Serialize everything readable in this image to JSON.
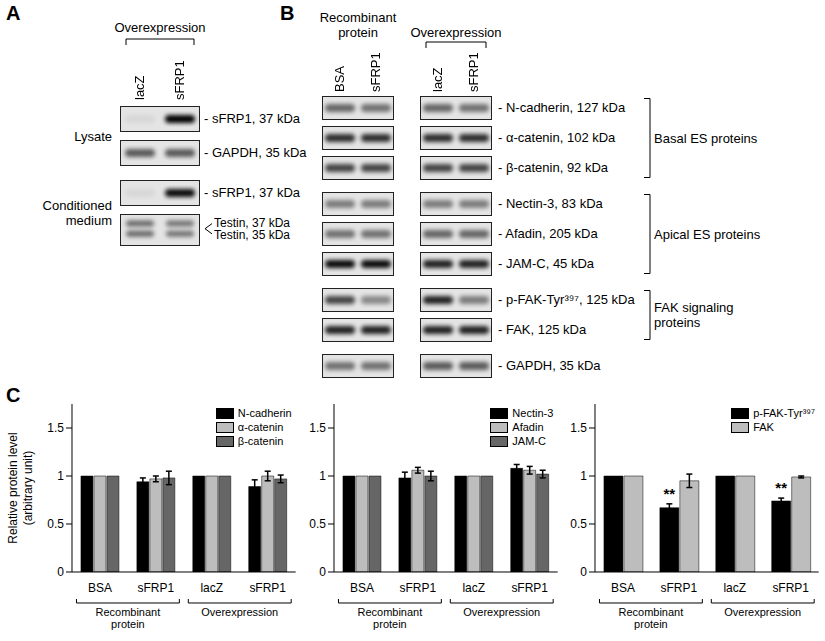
{
  "panel_a": {
    "label": "A",
    "header": "Overexpression",
    "lanes": [
      "lacZ",
      "sFRP1"
    ],
    "sections": [
      {
        "label": "Lysate",
        "rows": [
          {
            "labels": [
              "- sFRP1, 37 kDa"
            ]
          },
          {
            "labels": [
              "- GAPDH, 35 kDa"
            ]
          }
        ]
      },
      {
        "label": "Conditioned medium",
        "rows": [
          {
            "labels": [
              "- sFRP1, 37 kDa"
            ]
          },
          {
            "labels": [
              "Testin, 37 kDa",
              "Testin, 35 kDa"
            ]
          }
        ]
      }
    ]
  },
  "panel_b": {
    "label": "B",
    "lane_groups": [
      {
        "label": "Recombinant protein",
        "lanes": [
          "BSA",
          "sFRP1"
        ]
      },
      {
        "label": "Overexpression",
        "lanes": [
          "lacZ",
          "sFRP1"
        ]
      }
    ],
    "rows": [
      {
        "label": "- N-cadherin, 127 kDa",
        "group": "Basal ES proteins"
      },
      {
        "label": "- α-catenin, 102 kDa",
        "group": "Basal ES proteins"
      },
      {
        "label": "- β-catenin, 92 kDa",
        "group": "Basal ES proteins"
      },
      {
        "label": "- Nectin-3, 83 kDa",
        "group": "Apical ES proteins"
      },
      {
        "label": "- Afadin, 205 kDa",
        "group": "Apical ES proteins"
      },
      {
        "label": "- JAM-C, 45 kDa",
        "group": "Apical ES proteins"
      },
      {
        "label": "- p-FAK-Tyr³⁹⁷, 125 kDa",
        "group": "FAK signaling proteins"
      },
      {
        "label": "- FAK, 125 kDa",
        "group": "FAK signaling proteins"
      },
      {
        "label": "- GAPDH, 35 kDa"
      }
    ]
  },
  "panel_c": {
    "label": "C",
    "y_label": "Relative protein level (arbitrary unit)"
  },
  "chart_data": [
    {
      "type": "bar",
      "categories": [
        "BSA",
        "sFRP1",
        "lacZ",
        "sFRP1"
      ],
      "group_labels": [
        "Recombinant protein",
        "Recombinant protein",
        "Overexpression",
        "Overexpression"
      ],
      "ylim": [
        0,
        1.75
      ],
      "yticks": [
        0,
        0.5,
        1,
        1.5
      ],
      "legend": "upper right",
      "series": [
        {
          "name": "N-cadherin",
          "color": "#000000",
          "values": [
            1,
            0.94,
            1,
            0.89
          ],
          "errors": [
            0,
            0.04,
            0,
            0.07
          ]
        },
        {
          "name": "α-catenin",
          "color": "#bdbdbd",
          "values": [
            1,
            0.97,
            1,
            1.0
          ],
          "errors": [
            0,
            0.03,
            0,
            0.05
          ]
        },
        {
          "name": "β-catenin",
          "color": "#666666",
          "values": [
            1,
            0.98,
            1,
            0.97
          ],
          "errors": [
            0,
            0.07,
            0,
            0.04
          ]
        }
      ]
    },
    {
      "type": "bar",
      "categories": [
        "BSA",
        "sFRP1",
        "lacZ",
        "sFRP1"
      ],
      "group_labels": [
        "Recombinant protein",
        "Recombinant protein",
        "Overexpression",
        "Overexpression"
      ],
      "ylim": [
        0,
        1.75
      ],
      "yticks": [
        0,
        0.5,
        1,
        1.5
      ],
      "legend": "upper right",
      "series": [
        {
          "name": "Nectin-3",
          "color": "#000000",
          "values": [
            1,
            0.98,
            1,
            1.08
          ],
          "errors": [
            0,
            0.06,
            0,
            0.04
          ]
        },
        {
          "name": "Afadin",
          "color": "#bdbdbd",
          "values": [
            1,
            1.06,
            1,
            1.06
          ],
          "errors": [
            0,
            0.03,
            0,
            0.04
          ]
        },
        {
          "name": "JAM-C",
          "color": "#666666",
          "values": [
            1,
            1.0,
            1,
            1.02
          ],
          "errors": [
            0,
            0.05,
            0,
            0.04
          ]
        }
      ]
    },
    {
      "type": "bar",
      "categories": [
        "BSA",
        "sFRP1",
        "lacZ",
        "sFRP1"
      ],
      "group_labels": [
        "Recombinant protein",
        "Recombinant protein",
        "Overexpression",
        "Overexpression"
      ],
      "ylim": [
        0,
        1.75
      ],
      "yticks": [
        0,
        0.5,
        1,
        1.5
      ],
      "legend": "upper right",
      "series": [
        {
          "name": "p-FAK-Tyr³⁹⁷",
          "color": "#000000",
          "values": [
            1,
            0.67,
            1,
            0.74
          ],
          "errors": [
            0,
            0.04,
            0,
            0.03
          ],
          "significance": [
            null,
            "**",
            null,
            "**"
          ]
        },
        {
          "name": "FAK",
          "color": "#bdbdbd",
          "values": [
            1,
            0.95,
            1,
            0.99
          ],
          "errors": [
            0,
            0.07,
            0,
            0.01
          ]
        }
      ]
    }
  ]
}
